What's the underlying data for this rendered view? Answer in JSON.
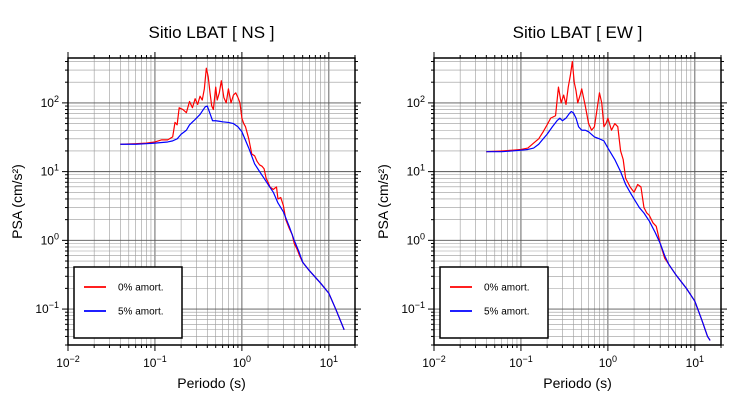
{
  "chart_data": [
    {
      "type": "line",
      "title": "Sitio LBAT [ NS ]",
      "xlabel": "Periodo (s)",
      "ylabel": "PSA (cm/s²)",
      "xscale": "log",
      "yscale": "log",
      "xlim": [
        0.01,
        20
      ],
      "ylim": [
        0.03,
        450
      ],
      "grid": true,
      "legend_position": "bottom-left",
      "x_tick_labels": [
        {
          "value": 0.01,
          "base": "10",
          "exp": "−2"
        },
        {
          "value": 0.1,
          "base": "10",
          "exp": "−1"
        },
        {
          "value": 1,
          "base": "10",
          "exp": "0"
        },
        {
          "value": 10,
          "base": "10",
          "exp": "1"
        }
      ],
      "y_tick_labels": [
        {
          "value": 0.1,
          "base": "10",
          "exp": "−1"
        },
        {
          "value": 1,
          "base": "10",
          "exp": "0"
        },
        {
          "value": 10,
          "base": "10",
          "exp": "1"
        },
        {
          "value": 100,
          "base": "10",
          "exp": "2"
        }
      ],
      "series": [
        {
          "name": "0% amort.",
          "color": "#ff0000",
          "points": [
            [
              0.04,
              25
            ],
            [
              0.06,
              25.5
            ],
            [
              0.08,
              26
            ],
            [
              0.1,
              27
            ],
            [
              0.12,
              29
            ],
            [
              0.14,
              29
            ],
            [
              0.16,
              32
            ],
            [
              0.17,
              52
            ],
            [
              0.18,
              48
            ],
            [
              0.19,
              85
            ],
            [
              0.21,
              80
            ],
            [
              0.23,
              72
            ],
            [
              0.25,
              105
            ],
            [
              0.27,
              85
            ],
            [
              0.29,
              115
            ],
            [
              0.31,
              95
            ],
            [
              0.33,
              125
            ],
            [
              0.35,
              110
            ],
            [
              0.37,
              160
            ],
            [
              0.39,
              320
            ],
            [
              0.41,
              240
            ],
            [
              0.43,
              140
            ],
            [
              0.45,
              90
            ],
            [
              0.47,
              80
            ],
            [
              0.5,
              170
            ],
            [
              0.52,
              110
            ],
            [
              0.55,
              140
            ],
            [
              0.58,
              210
            ],
            [
              0.62,
              120
            ],
            [
              0.66,
              100
            ],
            [
              0.7,
              160
            ],
            [
              0.75,
              100
            ],
            [
              0.8,
              130
            ],
            [
              0.85,
              140
            ],
            [
              0.9,
              120
            ],
            [
              0.95,
              100
            ],
            [
              1.0,
              60
            ],
            [
              1.05,
              50
            ],
            [
              1.1,
              45
            ],
            [
              1.2,
              30
            ],
            [
              1.3,
              18
            ],
            [
              1.4,
              17
            ],
            [
              1.5,
              14
            ],
            [
              1.6,
              12.5
            ],
            [
              1.7,
              12
            ],
            [
              1.8,
              11
            ],
            [
              1.9,
              8
            ],
            [
              2.0,
              7
            ],
            [
              2.1,
              6
            ],
            [
              2.3,
              5.5
            ],
            [
              2.5,
              6
            ],
            [
              2.6,
              4
            ],
            [
              2.8,
              4.2
            ],
            [
              3.0,
              3.2
            ],
            [
              3.2,
              2
            ],
            [
              3.5,
              1.5
            ],
            [
              3.8,
              1.2
            ],
            [
              4.0,
              0.9
            ],
            [
              4.3,
              0.75
            ],
            [
              4.6,
              0.6
            ],
            [
              5.0,
              0.48
            ],
            [
              6.0,
              0.36
            ],
            [
              8.0,
              0.24
            ],
            [
              10,
              0.17
            ],
            [
              12,
              0.1
            ],
            [
              15,
              0.05
            ]
          ]
        },
        {
          "name": "5% amort.",
          "color": "#0000ff",
          "points": [
            [
              0.04,
              25
            ],
            [
              0.06,
              25
            ],
            [
              0.08,
              25.5
            ],
            [
              0.1,
              26
            ],
            [
              0.12,
              26.5
            ],
            [
              0.14,
              27
            ],
            [
              0.16,
              28
            ],
            [
              0.18,
              30
            ],
            [
              0.2,
              35
            ],
            [
              0.23,
              40
            ],
            [
              0.25,
              48
            ],
            [
              0.28,
              55
            ],
            [
              0.3,
              60
            ],
            [
              0.33,
              68
            ],
            [
              0.36,
              80
            ],
            [
              0.38,
              88
            ],
            [
              0.4,
              90
            ],
            [
              0.43,
              70
            ],
            [
              0.46,
              55
            ],
            [
              0.5,
              55
            ],
            [
              0.55,
              54
            ],
            [
              0.6,
              53
            ],
            [
              0.7,
              52
            ],
            [
              0.8,
              50
            ],
            [
              0.9,
              45
            ],
            [
              1.0,
              38
            ],
            [
              1.2,
              22
            ],
            [
              1.4,
              13
            ],
            [
              1.6,
              10
            ],
            [
              1.8,
              8
            ],
            [
              2.0,
              6.5
            ],
            [
              2.3,
              5
            ],
            [
              2.6,
              3.5
            ],
            [
              3.0,
              2.6
            ],
            [
              3.5,
              1.6
            ],
            [
              4.0,
              1.0
            ],
            [
              4.5,
              0.7
            ],
            [
              5.0,
              0.48
            ],
            [
              6.0,
              0.36
            ],
            [
              8.0,
              0.24
            ],
            [
              10,
              0.17
            ],
            [
              12,
              0.1
            ],
            [
              15,
              0.05
            ]
          ]
        }
      ]
    },
    {
      "type": "line",
      "title": "Sitio LBAT [ EW ]",
      "xlabel": "Periodo (s)",
      "ylabel": "PSA (cm/s²)",
      "xscale": "log",
      "yscale": "log",
      "xlim": [
        0.01,
        20
      ],
      "ylim": [
        0.03,
        450
      ],
      "grid": true,
      "legend_position": "bottom-left",
      "x_tick_labels": [
        {
          "value": 0.01,
          "base": "10",
          "exp": "−2"
        },
        {
          "value": 0.1,
          "base": "10",
          "exp": "−1"
        },
        {
          "value": 1,
          "base": "10",
          "exp": "0"
        },
        {
          "value": 10,
          "base": "10",
          "exp": "1"
        }
      ],
      "y_tick_labels": [
        {
          "value": 0.1,
          "base": "10",
          "exp": "−1"
        },
        {
          "value": 1,
          "base": "10",
          "exp": "0"
        },
        {
          "value": 10,
          "base": "10",
          "exp": "1"
        },
        {
          "value": 100,
          "base": "10",
          "exp": "2"
        }
      ],
      "series": [
        {
          "name": "0% amort.",
          "color": "#ff0000",
          "points": [
            [
              0.04,
              19.5
            ],
            [
              0.06,
              20
            ],
            [
              0.08,
              20.5
            ],
            [
              0.1,
              21
            ],
            [
              0.12,
              22
            ],
            [
              0.14,
              26
            ],
            [
              0.16,
              30
            ],
            [
              0.18,
              38
            ],
            [
              0.2,
              48
            ],
            [
              0.22,
              60
            ],
            [
              0.25,
              65
            ],
            [
              0.27,
              170
            ],
            [
              0.29,
              100
            ],
            [
              0.31,
              130
            ],
            [
              0.33,
              95
            ],
            [
              0.35,
              170
            ],
            [
              0.37,
              250
            ],
            [
              0.39,
              400
            ],
            [
              0.41,
              200
            ],
            [
              0.43,
              150
            ],
            [
              0.45,
              100
            ],
            [
              0.48,
              130
            ],
            [
              0.5,
              160
            ],
            [
              0.55,
              90
            ],
            [
              0.6,
              50
            ],
            [
              0.65,
              40
            ],
            [
              0.7,
              45
            ],
            [
              0.75,
              80
            ],
            [
              0.8,
              140
            ],
            [
              0.85,
              100
            ],
            [
              0.9,
              45
            ],
            [
              0.95,
              50
            ],
            [
              1.0,
              60
            ],
            [
              1.1,
              40
            ],
            [
              1.2,
              50
            ],
            [
              1.3,
              45
            ],
            [
              1.4,
              20
            ],
            [
              1.5,
              15
            ],
            [
              1.6,
              8
            ],
            [
              1.8,
              6
            ],
            [
              2.0,
              5
            ],
            [
              2.2,
              6.5
            ],
            [
              2.4,
              6
            ],
            [
              2.6,
              3
            ],
            [
              2.8,
              2.5
            ],
            [
              3.0,
              2.3
            ],
            [
              3.3,
              1.8
            ],
            [
              3.6,
              1.6
            ],
            [
              4.0,
              0.9
            ],
            [
              4.5,
              0.55
            ],
            [
              5.0,
              0.45
            ],
            [
              6.0,
              0.32
            ],
            [
              8.0,
              0.2
            ],
            [
              10,
              0.13
            ],
            [
              12,
              0.07
            ],
            [
              14,
              0.04
            ],
            [
              15,
              0.035
            ]
          ]
        },
        {
          "name": "5% amort.",
          "color": "#0000ff",
          "points": [
            [
              0.04,
              19.5
            ],
            [
              0.06,
              19.5
            ],
            [
              0.08,
              20
            ],
            [
              0.1,
              20.5
            ],
            [
              0.12,
              21
            ],
            [
              0.14,
              22
            ],
            [
              0.16,
              25
            ],
            [
              0.18,
              30
            ],
            [
              0.2,
              35
            ],
            [
              0.23,
              45
            ],
            [
              0.26,
              55
            ],
            [
              0.28,
              60
            ],
            [
              0.3,
              55
            ],
            [
              0.33,
              60
            ],
            [
              0.36,
              70
            ],
            [
              0.38,
              75
            ],
            [
              0.4,
              72
            ],
            [
              0.43,
              60
            ],
            [
              0.46,
              45
            ],
            [
              0.5,
              40
            ],
            [
              0.55,
              40
            ],
            [
              0.6,
              38
            ],
            [
              0.7,
              32
            ],
            [
              0.8,
              30
            ],
            [
              0.9,
              28
            ],
            [
              1.0,
              22
            ],
            [
              1.2,
              15
            ],
            [
              1.4,
              10
            ],
            [
              1.6,
              6.5
            ],
            [
              1.8,
              5
            ],
            [
              2.0,
              4
            ],
            [
              2.3,
              3
            ],
            [
              2.6,
              2.5
            ],
            [
              3.0,
              1.9
            ],
            [
              3.5,
              1.3
            ],
            [
              4.0,
              0.9
            ],
            [
              4.5,
              0.6
            ],
            [
              5.0,
              0.45
            ],
            [
              6.0,
              0.32
            ],
            [
              8.0,
              0.2
            ],
            [
              10,
              0.13
            ],
            [
              12,
              0.07
            ],
            [
              14,
              0.04
            ],
            [
              15,
              0.035
            ]
          ]
        }
      ]
    }
  ]
}
